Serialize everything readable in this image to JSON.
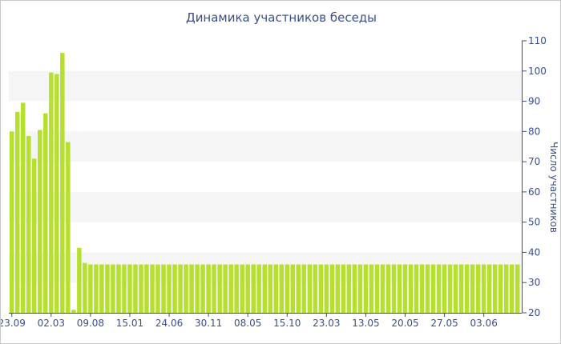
{
  "chart_data": {
    "type": "bar",
    "title": "Динамика участников беседы",
    "ylabel": "Число участников",
    "ylim": [
      20,
      110
    ],
    "yticks": [
      20,
      30,
      40,
      50,
      60,
      70,
      80,
      90,
      100,
      110
    ],
    "y_axis_side": "right",
    "bar_color": "#b5e02d",
    "band_color": "#f5f5f5",
    "xtick_labels": [
      "23.09",
      "02.03",
      "09.08",
      "15.01",
      "24.06",
      "30.11",
      "08.05",
      "15.10",
      "23.03",
      "13.05",
      "20.05",
      "27.05",
      "03.06"
    ],
    "xtick_bar_index": [
      0,
      7,
      14,
      21,
      28,
      35,
      42,
      49,
      56,
      63,
      70,
      77,
      84
    ],
    "values": [
      80,
      86.5,
      89.5,
      78.5,
      71,
      80.5,
      86,
      99.5,
      99,
      106,
      76.5,
      21,
      41.5,
      36.5,
      36,
      36,
      36,
      36,
      36,
      36,
      36,
      36,
      36,
      36,
      36,
      36,
      36,
      36,
      36,
      36,
      36,
      36,
      36,
      36,
      36,
      36,
      36,
      36,
      36,
      36,
      36,
      36,
      36,
      36,
      36,
      36,
      36,
      36,
      36,
      36,
      36,
      36,
      36,
      36,
      36,
      36,
      36,
      36,
      36,
      36,
      36,
      36,
      36,
      36,
      36,
      36,
      36,
      36,
      36,
      36,
      36,
      36,
      36,
      36,
      36,
      36,
      36,
      36,
      36,
      36,
      36,
      36,
      36,
      36,
      36,
      36,
      36,
      36,
      36,
      36,
      36
    ]
  }
}
